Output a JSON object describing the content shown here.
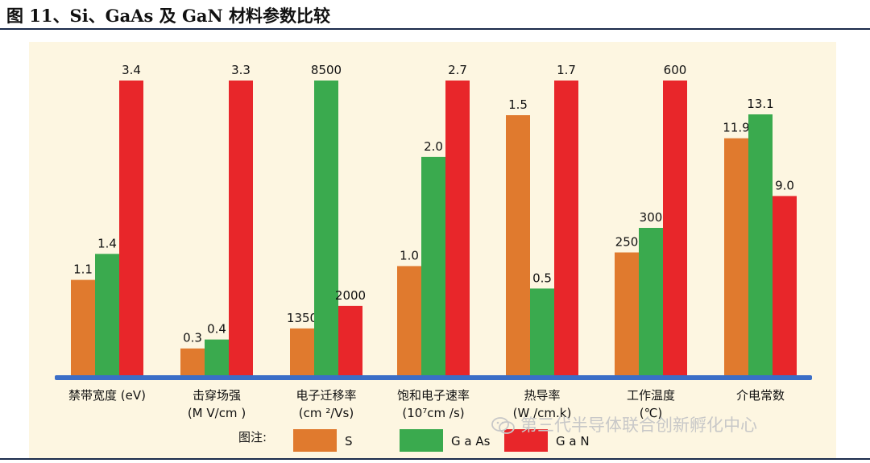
{
  "figure": {
    "title": "图 11、Si、GaAs 及 GaN 材料参数比较"
  },
  "watermark": "第三代半导体联合创新孵化中心",
  "colors": {
    "Si": "#e07a2e",
    "GaAs": "#3aaa4e",
    "GaN": "#e8262a",
    "axis": "#3b6ec7",
    "panel": "#fdf6e1"
  },
  "chart_data": {
    "type": "bar",
    "title": "",
    "legend_title": "图注:",
    "legend_position": "bottom",
    "categories": [
      {
        "name": "禁带宽度 (eV)",
        "unit": ""
      },
      {
        "name": "击穿场强",
        "unit": "(M V/cm )"
      },
      {
        "name": "电子迁移率",
        "unit": "(cm ²/Vs)"
      },
      {
        "name": "饱和电子速率",
        "unit": "(10⁷cm /s)"
      },
      {
        "name": "热导率",
        "unit": "(W /cm.k)"
      },
      {
        "name": "工作温度",
        "unit": "(℃)"
      },
      {
        "name": "介电常数",
        "unit": ""
      }
    ],
    "series": [
      {
        "name": "S",
        "key": "Si",
        "values": [
          1.1,
          0.3,
          1350,
          1.0,
          1.5,
          250,
          11.9
        ],
        "labels": [
          "1.1",
          "0.3",
          "1350",
          "1.0",
          "1.5",
          "250",
          "11.9"
        ]
      },
      {
        "name": "G a As",
        "key": "GaAs",
        "values": [
          1.4,
          0.4,
          8500,
          2.0,
          0.5,
          300,
          13.1
        ],
        "labels": [
          "1.4",
          "0.4",
          "8500",
          "2.0",
          "0.5",
          "300",
          "13.1"
        ]
      },
      {
        "name": "G a N",
        "key": "GaN",
        "values": [
          3.4,
          3.3,
          2000,
          2.7,
          1.7,
          600,
          9.0
        ],
        "labels": [
          "3.4",
          "3.3",
          "2000",
          "2.7",
          "1.7",
          "600",
          "9.0"
        ]
      }
    ],
    "category_max": [
      3.4,
      3.3,
      8500,
      2.7,
      1.7,
      600,
      14.8
    ],
    "note": "each category drawn on its own independent scale; no y-axis shown",
    "grid": false
  }
}
